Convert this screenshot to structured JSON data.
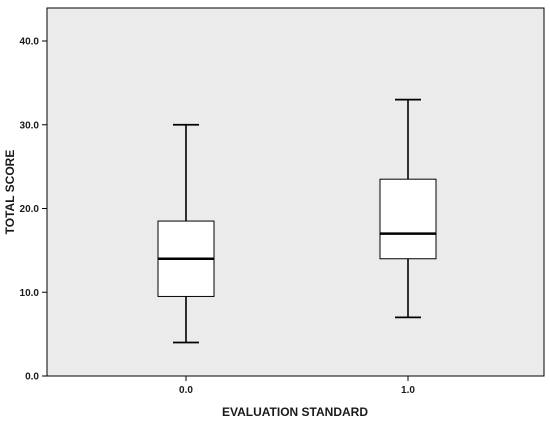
{
  "chart_data": {
    "type": "boxplot",
    "xlabel": "EVALUATION STANDARD",
    "ylabel": "TOTAL SCORE",
    "categories": [
      "0.0",
      "1.0"
    ],
    "ylim": [
      0,
      40
    ],
    "yticks": [
      0,
      10,
      20,
      30,
      40
    ],
    "ytick_labels": [
      "0.0",
      "10.0",
      "20.0",
      "30.0",
      "40.0"
    ],
    "boxes": [
      {
        "category": "0.0",
        "min": 4,
        "q1": 9.5,
        "median": 14,
        "q3": 18.5,
        "max": 30
      },
      {
        "category": "1.0",
        "min": 7,
        "q1": 14,
        "median": 17,
        "q3": 23.5,
        "max": 33
      }
    ],
    "grid": false,
    "legend": "none",
    "colors": {
      "plot_background": "#ebebeb",
      "box_fill": "#ffffff",
      "line": "#000000"
    }
  }
}
